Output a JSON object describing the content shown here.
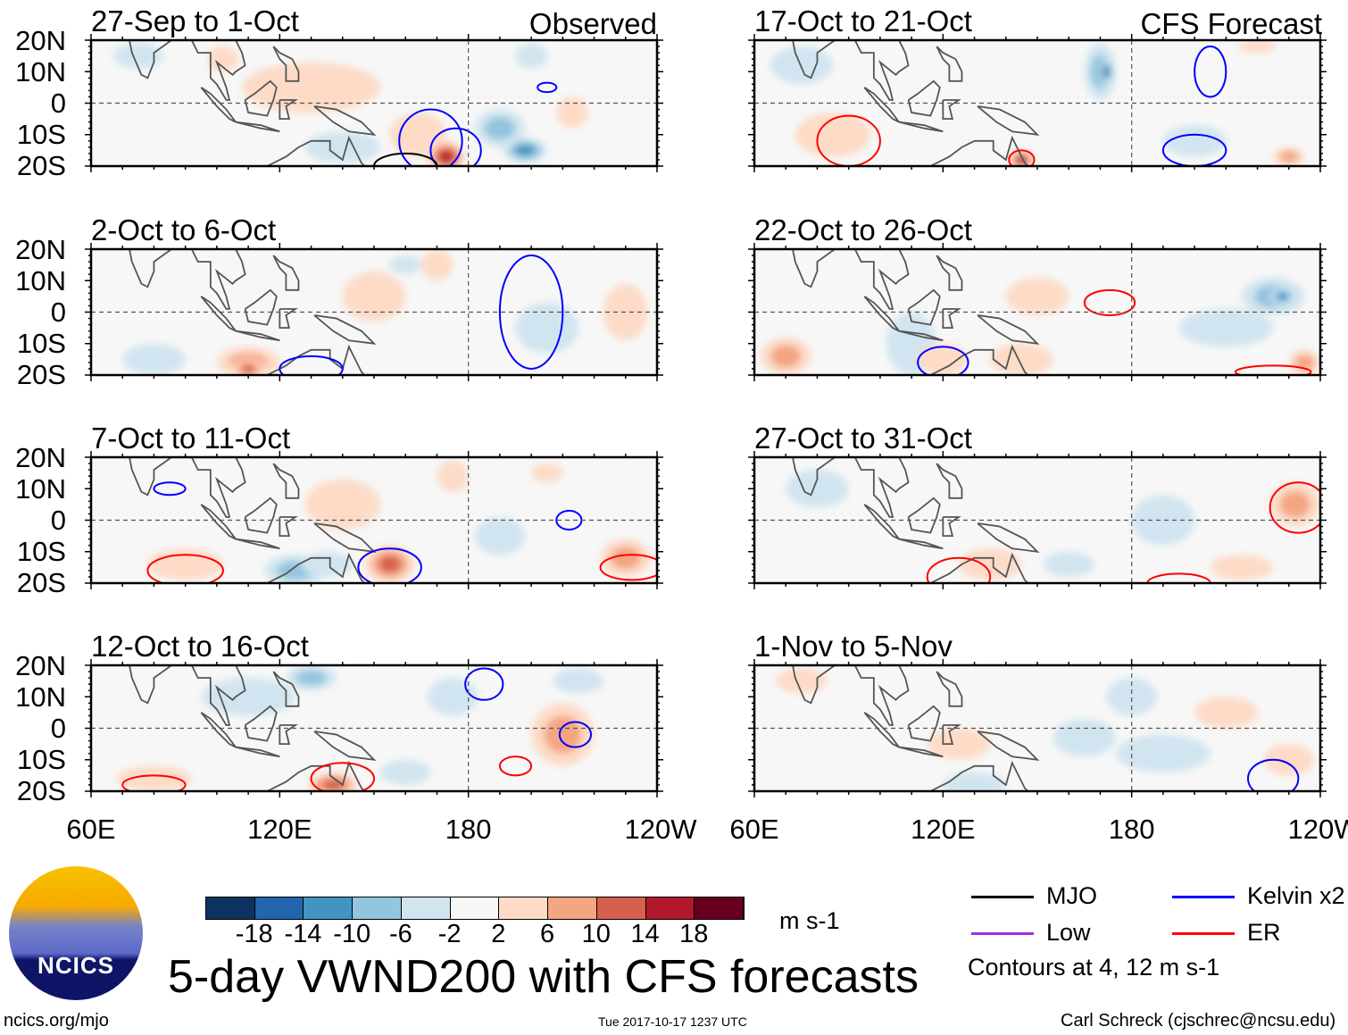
{
  "title": "5-day VWND200 with CFS forecasts",
  "logo_text": "NCICS",
  "footer": {
    "left": "ncics.org/mjo",
    "center": "Tue 2017-10-17 1237 UTC",
    "right": "Carl Schreck (cjschrec@ncsu.edu)"
  },
  "column_labels": {
    "left": "Observed",
    "right": "CFS Forecast"
  },
  "lat_ticks": [
    "20N",
    "10N",
    "0",
    "10S",
    "20S"
  ],
  "lon_ticks": [
    "60E",
    "120E",
    "180",
    "120W"
  ],
  "colorbar": {
    "unit": "m s-1",
    "labels": [
      "-18",
      "-14",
      "-10",
      "-6",
      "-2",
      "2",
      "6",
      "10",
      "14",
      "18"
    ],
    "colors": [
      "#0c3362",
      "#2166ac",
      "#4393c3",
      "#92c5de",
      "#d1e5f0",
      "#f7f7f7",
      "#fddbc7",
      "#f4a582",
      "#d6604d",
      "#b2182b",
      "#67001f"
    ]
  },
  "legend": {
    "items": [
      {
        "label": "MJO",
        "color": "#000000"
      },
      {
        "label": "Kelvin x2",
        "color": "#0000ff"
      },
      {
        "label": "Low",
        "color": "#9933dd"
      },
      {
        "label": "ER",
        "color": "#ff0000"
      }
    ],
    "note": "Contours at 4, 12 m s-1"
  },
  "chart_data": {
    "type": "heatmap",
    "variable": "200-hPa meridional wind anomaly (m s-1)",
    "lon_range": [
      60,
      240
    ],
    "lat_range": [
      -20,
      20
    ],
    "panels": [
      {
        "title": "27-Sep to 1-Oct",
        "source": "Observed",
        "features": [
          [
            130,
            5,
            3,
            22,
            8
          ],
          [
            102,
            14,
            5,
            5,
            4
          ],
          [
            164,
            -10,
            6,
            9,
            7
          ],
          [
            173,
            -17,
            16,
            6,
            5
          ],
          [
            190,
            -8,
            -8,
            8,
            6
          ],
          [
            198,
            -15,
            -12,
            7,
            4
          ],
          [
            213,
            -3,
            6,
            5,
            5
          ],
          [
            200,
            15,
            -4,
            5,
            4
          ],
          [
            140,
            -14,
            -3,
            12,
            5
          ],
          [
            75,
            15,
            -3,
            8,
            4
          ]
        ],
        "contours": [
          [
            168,
            -12,
            10,
            10,
            "Kelvin"
          ],
          [
            176,
            -15,
            8,
            7,
            "Kelvin"
          ],
          [
            160,
            -20,
            10,
            4,
            "MJO"
          ],
          [
            205,
            5,
            3,
            1.5,
            "Kelvin"
          ]
        ]
      },
      {
        "title": "17-Oct to 21-Oct",
        "source": "CFS Forecast",
        "features": [
          [
            170,
            10,
            -10,
            5,
            9
          ],
          [
            172,
            10,
            -16,
            2,
            4
          ],
          [
            85,
            -10,
            5,
            12,
            7
          ],
          [
            145,
            -18,
            16,
            4,
            3
          ],
          [
            230,
            -17,
            10,
            5,
            3
          ],
          [
            75,
            12,
            -3,
            10,
            6
          ],
          [
            200,
            -12,
            -3,
            10,
            5
          ],
          [
            220,
            18,
            5,
            6,
            2
          ]
        ],
        "contours": [
          [
            205,
            10,
            5,
            8,
            "Kelvin"
          ],
          [
            200,
            -15,
            10,
            5,
            "Kelvin"
          ],
          [
            145,
            -18,
            4,
            3,
            "ER"
          ],
          [
            90,
            -12,
            10,
            8,
            "ER"
          ]
        ]
      },
      {
        "title": "2-Oct to 6-Oct",
        "source": "Observed",
        "features": [
          [
            110,
            -16,
            8,
            10,
            5
          ],
          [
            110,
            -18,
            12,
            5,
            3
          ],
          [
            150,
            5,
            4,
            10,
            8
          ],
          [
            170,
            15,
            3,
            5,
            5
          ],
          [
            205,
            -5,
            -4,
            10,
            8
          ],
          [
            230,
            0,
            6,
            7,
            9
          ],
          [
            160,
            15,
            -4,
            5,
            3
          ],
          [
            80,
            -15,
            -3,
            10,
            5
          ]
        ],
        "contours": [
          [
            200,
            0,
            10,
            18,
            "Kelvin"
          ],
          [
            130,
            -18,
            10,
            4,
            "Kelvin"
          ]
        ]
      },
      {
        "title": "22-Oct to 26-Oct",
        "source": "CFS Forecast",
        "features": [
          [
            110,
            -10,
            -5,
            8,
            10
          ],
          [
            70,
            -14,
            8,
            8,
            6
          ],
          [
            120,
            -15,
            6,
            8,
            5
          ],
          [
            145,
            -15,
            6,
            10,
            5
          ],
          [
            225,
            5,
            -8,
            10,
            6
          ],
          [
            228,
            5,
            -12,
            4,
            3
          ],
          [
            210,
            -5,
            -3,
            15,
            6
          ],
          [
            235,
            -16,
            8,
            5,
            4
          ],
          [
            150,
            5,
            4,
            10,
            6
          ]
        ],
        "contours": [
          [
            173,
            3,
            8,
            4,
            "ER"
          ],
          [
            120,
            -16,
            8,
            5,
            "Kelvin"
          ],
          [
            225,
            -19,
            12,
            2,
            "ER"
          ]
        ]
      },
      {
        "title": "7-Oct to 11-Oct",
        "source": "Observed",
        "features": [
          [
            155,
            -14,
            12,
            8,
            6
          ],
          [
            90,
            -14,
            6,
            12,
            5
          ],
          [
            125,
            -16,
            -8,
            10,
            5
          ],
          [
            190,
            -5,
            -5,
            8,
            6
          ],
          [
            230,
            -12,
            8,
            8,
            6
          ],
          [
            175,
            14,
            5,
            5,
            5
          ],
          [
            205,
            15,
            4,
            5,
            3
          ],
          [
            135,
            -14,
            -4,
            8,
            4
          ],
          [
            140,
            5,
            3,
            12,
            8
          ]
        ],
        "contours": [
          [
            155,
            -15,
            10,
            6,
            "Kelvin"
          ],
          [
            90,
            -16,
            12,
            5,
            "ER"
          ],
          [
            212,
            0,
            4,
            3,
            "Kelvin"
          ],
          [
            232,
            -15,
            10,
            4,
            "ER"
          ],
          [
            85,
            10,
            5,
            2,
            "Kelvin"
          ]
        ]
      },
      {
        "title": "27-Oct to 31-Oct",
        "source": "CFS Forecast",
        "features": [
          [
            232,
            5,
            8,
            8,
            7
          ],
          [
            190,
            0,
            -4,
            10,
            8
          ],
          [
            135,
            -14,
            4,
            10,
            5
          ],
          [
            160,
            -14,
            -3,
            8,
            4
          ],
          [
            80,
            10,
            -3,
            10,
            6
          ],
          [
            215,
            -15,
            3,
            10,
            4
          ]
        ],
        "contours": [
          [
            233,
            4,
            9,
            8,
            "ER"
          ],
          [
            125,
            -18,
            10,
            6,
            "ER"
          ],
          [
            195,
            -20,
            10,
            3,
            "ER"
          ]
        ]
      },
      {
        "title": "12-Oct to 16-Oct",
        "source": "Observed",
        "features": [
          [
            137,
            -18,
            14,
            8,
            4
          ],
          [
            210,
            -2,
            8,
            10,
            10
          ],
          [
            130,
            16,
            -8,
            8,
            4
          ],
          [
            175,
            10,
            -4,
            8,
            6
          ],
          [
            80,
            -16,
            6,
            12,
            4
          ],
          [
            160,
            -14,
            -4,
            8,
            4
          ],
          [
            110,
            10,
            -3,
            15,
            6
          ],
          [
            215,
            15,
            -4,
            8,
            4
          ]
        ],
        "contours": [
          [
            214,
            -2,
            5,
            4,
            "Kelvin"
          ],
          [
            140,
            -16,
            10,
            5,
            "ER"
          ],
          [
            195,
            -12,
            5,
            3,
            "ER"
          ],
          [
            80,
            -18,
            10,
            3,
            "ER"
          ],
          [
            185,
            14,
            6,
            5,
            "Kelvin"
          ]
        ]
      },
      {
        "title": "1-Nov to 5-Nov",
        "source": "CFS Forecast",
        "features": [
          [
            165,
            -3,
            -6,
            10,
            6
          ],
          [
            180,
            10,
            -5,
            8,
            6
          ],
          [
            190,
            -8,
            -3,
            15,
            6
          ],
          [
            130,
            -18,
            -5,
            10,
            4
          ],
          [
            125,
            -5,
            4,
            10,
            5
          ],
          [
            210,
            5,
            3,
            10,
            5
          ],
          [
            230,
            -10,
            3,
            8,
            5
          ],
          [
            75,
            15,
            3,
            8,
            4
          ]
        ],
        "contours": [
          [
            225,
            -16,
            8,
            6,
            "Kelvin"
          ]
        ]
      }
    ],
    "feature_fields": [
      "lon",
      "lat",
      "value",
      "lon_halfwidth_deg",
      "lat_halfwidth_deg"
    ]
  }
}
